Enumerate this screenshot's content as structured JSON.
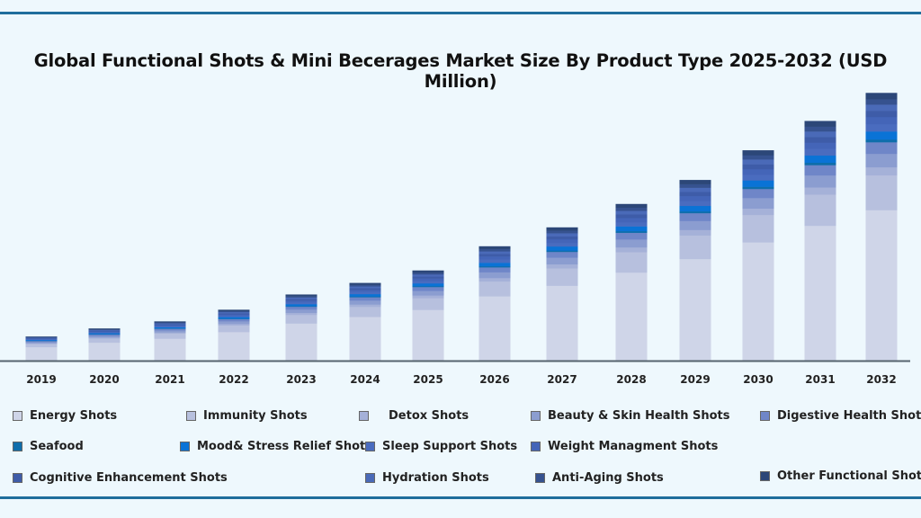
{
  "chart_data": {
    "type": "bar",
    "stacked": true,
    "title": "Global Functional Shots & Mini Becerages Market Size By Product Type 2025-2032 (USD Million)",
    "xlabel": "",
    "ylabel": "",
    "y_axis_shown": false,
    "grid": false,
    "legend_position": "bottom",
    "categories": [
      "2019",
      "2020",
      "2021",
      "2022",
      "2023",
      "2024",
      "2025",
      "2026",
      "2027",
      "2028",
      "2029",
      "2030",
      "2031",
      "2032"
    ],
    "ylim": [
      0,
      300
    ],
    "series": [
      {
        "name": "Energy Shots",
        "color": "#cfd5e8",
        "values": [
          15.2,
          20.2,
          24.7,
          32.0,
          41.6,
          48.9,
          56.8,
          71.9,
          83.7,
          98.4,
          113.5,
          132.1,
          150.6,
          168.0
        ]
      },
      {
        "name": "Immunity Shots",
        "color": "#b7c0de",
        "values": [
          3.5,
          4.7,
          5.7,
          7.4,
          9.6,
          11.3,
          13.1,
          16.6,
          19.4,
          22.8,
          26.3,
          30.6,
          34.8,
          38.9
        ]
      },
      {
        "name": "Detox Shots",
        "color": "#a5b1d8",
        "values": [
          0.8,
          1.1,
          1.3,
          1.7,
          2.2,
          2.6,
          3.0,
          3.8,
          4.5,
          5.3,
          6.1,
          7.1,
          8.0,
          9.0
        ]
      },
      {
        "name": "Beauty & Skin Health Shots",
        "color": "#8b9dd0",
        "values": [
          1.4,
          1.8,
          2.2,
          2.9,
          3.7,
          4.4,
          5.1,
          6.4,
          7.5,
          8.8,
          10.1,
          11.8,
          13.4,
          15.0
        ]
      },
      {
        "name": "Digestive Health Shots",
        "color": "#6f86c8",
        "values": [
          1.2,
          1.5,
          1.9,
          2.5,
          3.2,
          3.7,
          4.3,
          5.5,
          6.4,
          7.5,
          8.7,
          10.1,
          11.5,
          12.9
        ]
      },
      {
        "name": "Seafood",
        "color": "#0f6eab",
        "values": [
          0.3,
          0.4,
          0.4,
          0.6,
          0.7,
          0.9,
          1.0,
          1.3,
          1.5,
          1.8,
          2.0,
          2.4,
          2.7,
          3.0
        ]
      },
      {
        "name": "Mood& Stress Relief Shots",
        "color": "#0a73d6",
        "values": [
          0.8,
          1.1,
          1.3,
          1.7,
          2.2,
          2.6,
          3.0,
          3.8,
          4.5,
          5.3,
          6.1,
          7.1,
          8.0,
          9.0
        ]
      },
      {
        "name": "Sleep Support Shots",
        "color": "#4a6cbf",
        "values": [
          0.7,
          1.0,
          1.2,
          1.5,
          2.0,
          2.3,
          2.7,
          3.5,
          4.0,
          4.7,
          5.5,
          6.3,
          7.2,
          8.1
        ]
      },
      {
        "name": "Weight Managment Shots",
        "color": "#4465b8",
        "values": [
          0.7,
          1.0,
          1.2,
          1.5,
          2.0,
          2.3,
          2.7,
          3.5,
          4.0,
          4.7,
          5.5,
          6.3,
          7.2,
          8.1
        ]
      },
      {
        "name": "Cognitive Enhancement Shots",
        "color": "#3e5ca8",
        "values": [
          0.6,
          0.8,
          1.0,
          1.3,
          1.7,
          2.0,
          2.3,
          2.9,
          3.4,
          4.0,
          4.6,
          5.4,
          6.2,
          6.9
        ]
      },
      {
        "name": "Hydration Shots",
        "color": "#4a6ab8",
        "values": [
          0.6,
          0.8,
          1.0,
          1.3,
          1.7,
          2.0,
          2.3,
          2.9,
          3.4,
          4.0,
          4.6,
          5.4,
          6.2,
          6.9
        ]
      },
      {
        "name": "Anti-Aging Shots",
        "color": "#36528f",
        "values": [
          0.5,
          0.7,
          0.9,
          1.1,
          1.5,
          1.7,
          2.0,
          2.6,
          3.0,
          3.5,
          4.0,
          4.7,
          5.4,
          6.0
        ]
      },
      {
        "name": "Other Functional Shots",
        "color": "#2c4778",
        "values": [
          0.6,
          0.8,
          1.0,
          1.3,
          1.7,
          2.0,
          2.3,
          2.9,
          3.4,
          4.0,
          4.6,
          5.4,
          6.2,
          6.9
        ]
      }
    ]
  }
}
